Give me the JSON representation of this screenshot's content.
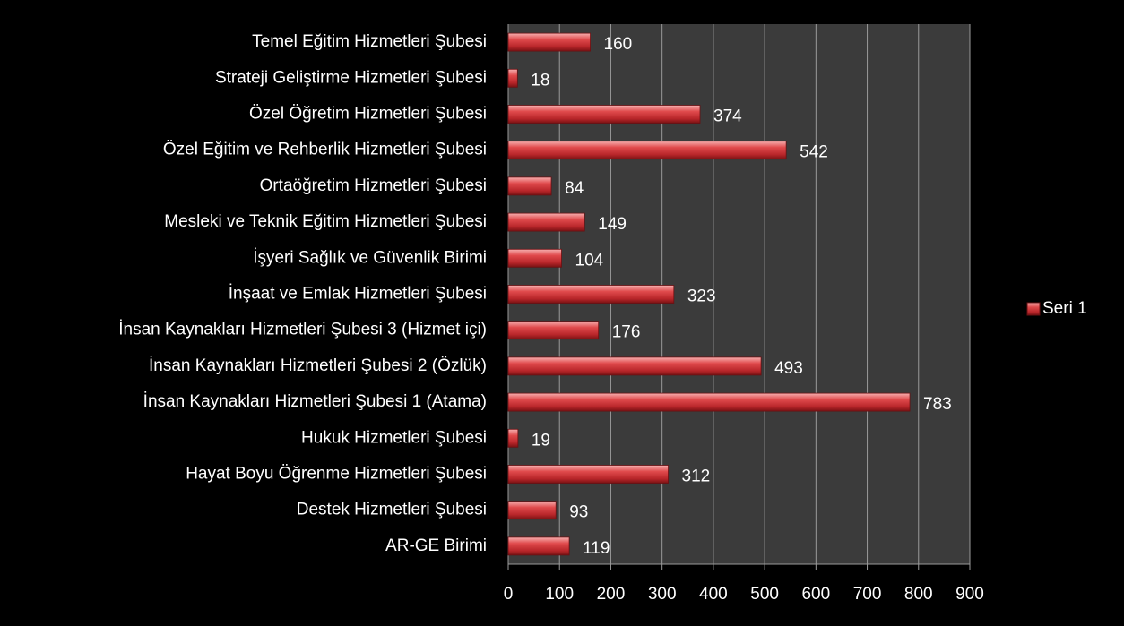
{
  "chart_data": {
    "type": "bar",
    "orientation": "horizontal",
    "categories": [
      "Temel Eğitim Hizmetleri Şubesi",
      "Strateji Geliştirme Hizmetleri Şubesi",
      "Özel Öğretim Hizmetleri Şubesi",
      "Özel Eğitim ve Rehberlik Hizmetleri Şubesi",
      "Ortaöğretim Hizmetleri Şubesi",
      "Mesleki ve Teknik Eğitim Hizmetleri Şubesi",
      "İşyeri Sağlık ve Güvenlik Birimi",
      "İnşaat ve Emlak Hizmetleri Şubesi",
      "İnsan Kaynakları Hizmetleri Şubesi 3 (Hizmet içi)",
      "İnsan Kaynakları Hizmetleri Şubesi 2 (Özlük)",
      "İnsan Kaynakları Hizmetleri Şubesi 1 (Atama)",
      "Hukuk Hizmetleri Şubesi",
      "Hayat Boyu Öğrenme Hizmetleri Şubesi",
      "Destek Hizmetleri Şubesi",
      "AR-GE Birimi"
    ],
    "series": [
      {
        "name": "Seri 1",
        "color": "#d0393b",
        "values": [
          160,
          18,
          374,
          542,
          84,
          149,
          104,
          323,
          176,
          493,
          783,
          19,
          312,
          93,
          119
        ]
      }
    ],
    "xlim": [
      0,
      900
    ],
    "xticks": [
      0,
      100,
      200,
      300,
      400,
      500,
      600,
      700,
      800,
      900
    ],
    "grid": true,
    "legend": "right"
  }
}
